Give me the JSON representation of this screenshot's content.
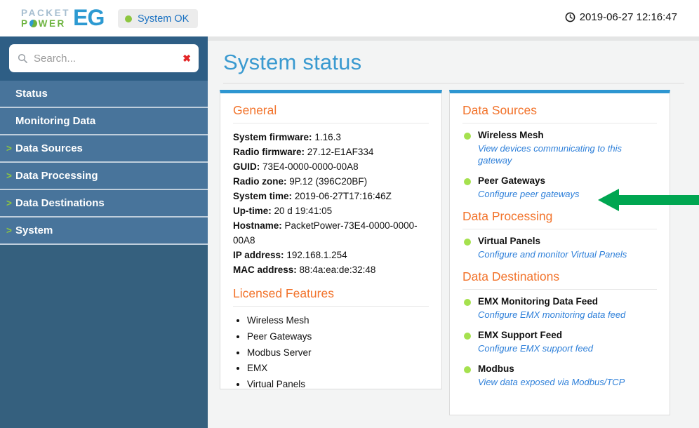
{
  "header": {
    "logo": {
      "line1": "PACKET",
      "line2_prefix": "P",
      "line2_suffix": "WER",
      "product": "EG"
    },
    "status_badge": {
      "label": "System OK"
    },
    "clock_time": "2019-06-27 12:16:47"
  },
  "sidebar": {
    "search": {
      "placeholder": "Search...",
      "value": ""
    },
    "items": [
      {
        "label": "Status",
        "expandable": false
      },
      {
        "label": "Monitoring Data",
        "expandable": false
      },
      {
        "label": "Data Sources",
        "expandable": true
      },
      {
        "label": "Data Processing",
        "expandable": true
      },
      {
        "label": "Data Destinations",
        "expandable": true
      },
      {
        "label": "System",
        "expandable": true
      }
    ]
  },
  "main": {
    "title": "System status",
    "general_panel": {
      "heading": "General",
      "fields": [
        {
          "label": "System firmware:",
          "value": "1.16.3"
        },
        {
          "label": "Radio firmware:",
          "value": "27.12-E1AF334"
        },
        {
          "label": "GUID:",
          "value": "73E4-0000-0000-00A8"
        },
        {
          "label": "Radio zone:",
          "value": "9P.12 (396C20BF)"
        },
        {
          "label": "System time:",
          "value": "2019-06-27T17:16:46Z"
        },
        {
          "label": "Up-time:",
          "value": "20 d 19:41:05"
        },
        {
          "label": "Hostname:",
          "value": "PacketPower-73E4-0000-0000-00A8"
        },
        {
          "label": "IP address:",
          "value": "192.168.1.254"
        },
        {
          "label": "MAC address:",
          "value": "88:4a:ea:de:32:48"
        }
      ],
      "licensed_heading": "Licensed Features",
      "licensed_features": [
        "Wireless Mesh",
        "Peer Gateways",
        "Modbus Server",
        "EMX",
        "Virtual Panels"
      ]
    },
    "status_panel": {
      "sections": [
        {
          "heading": "Data Sources",
          "items": [
            {
              "status": "ok",
              "title": "Wireless Mesh",
              "link": "View devices communicating to this gateway"
            },
            {
              "status": "ok",
              "title": "Peer Gateways",
              "link": "Configure peer gateways"
            }
          ]
        },
        {
          "heading": "Data Processing",
          "items": [
            {
              "status": "ok",
              "title": "Virtual Panels",
              "link": "Configure and monitor Virtual Panels"
            }
          ]
        },
        {
          "heading": "Data Destinations",
          "items": [
            {
              "status": "ok",
              "title": "EMX Monitoring Data Feed",
              "link": "Configure EMX monitoring data feed"
            },
            {
              "status": "ok",
              "title": "EMX Support Feed",
              "link": "Configure EMX support feed"
            },
            {
              "status": "ok",
              "title": "Modbus",
              "link": "View data exposed via Modbus/TCP"
            }
          ]
        }
      ]
    }
  },
  "annotation": {
    "arrow_direction": "left",
    "arrow_color": "#00a651"
  },
  "colors": {
    "accent_orange": "#f2732b",
    "title_blue": "#3a9ad0",
    "panel_bar_blue": "#2e96d1",
    "link_blue": "#2d7fd9",
    "status_green": "#a5e14e",
    "logo_green": "#6cb33f",
    "logo_blue": "#2d9ad2",
    "sidebar_item_blue": "#48749b",
    "sidebar_dark_blue": "#2e5e85",
    "badge_text_blue": "#1b72c2",
    "chevron_green": "#8dc63f",
    "clear_red": "#e32526"
  }
}
